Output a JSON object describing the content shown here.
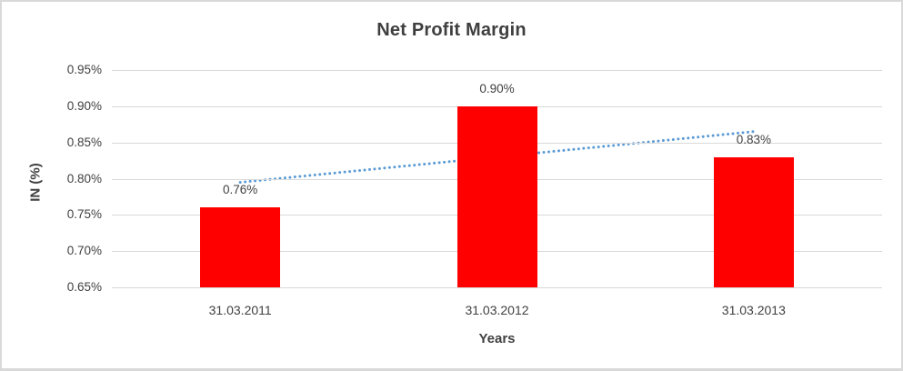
{
  "chart_data": {
    "type": "bar",
    "title": "Net Profit Margin",
    "xlabel": "Years",
    "ylabel": "IN (%)",
    "categories": [
      "31.03.2011",
      "31.03.2012",
      "31.03.2013"
    ],
    "values": [
      0.76,
      0.9,
      0.83
    ],
    "value_labels": [
      "0.76%",
      "0.90%",
      "0.83%"
    ],
    "ylim": [
      0.65,
      0.95
    ],
    "ytick_step": 0.05,
    "ytick_labels": [
      "0.95%",
      "0.90%",
      "0.85%",
      "0.80%",
      "0.75%",
      "0.70%",
      "0.65%"
    ],
    "grid": true,
    "legend": "none",
    "trendline": {
      "type": "linear",
      "style": "dotted",
      "start_value": 0.795,
      "end_value": 0.865,
      "color": "#5B9BD5"
    },
    "colors": {
      "bar": "#FF0000",
      "gridline": "#D9D9D9",
      "text": "#404040",
      "title": "#3F3F3F",
      "border": "#D9D9D9",
      "background": "#FFFFFF"
    }
  }
}
